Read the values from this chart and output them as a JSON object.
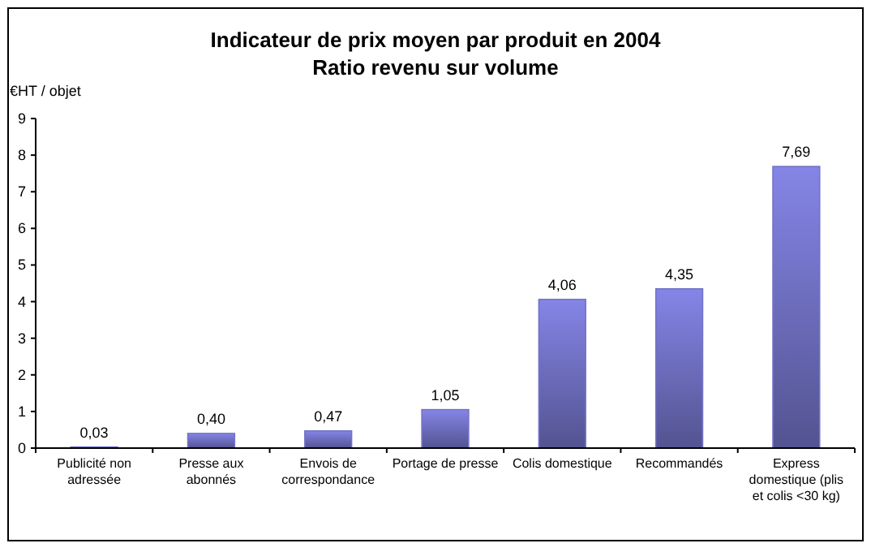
{
  "chart_data": {
    "type": "bar",
    "title": "Indicateur de prix moyen par produit en 2004",
    "subtitle": "Ratio revenu sur volume",
    "ylabel": "€HT / objet",
    "categories": [
      "Publicité non adressée",
      "Presse aux abonnés",
      "Envois de correspondance",
      "Portage de presse",
      "Colis domestique",
      "Recommandés",
      "Express domestique (plis et colis <30 kg)"
    ],
    "values": [
      0.03,
      0.4,
      0.47,
      1.05,
      4.06,
      4.35,
      7.69
    ],
    "value_labels": [
      "0,03",
      "0,40",
      "0,47",
      "1,05",
      "4,06",
      "4,35",
      "7,69"
    ],
    "color": "#7373c8",
    "ylim": [
      0,
      9
    ],
    "yticks": [
      0,
      1,
      2,
      3,
      4,
      5,
      6,
      7,
      8,
      9
    ],
    "grid": false
  }
}
